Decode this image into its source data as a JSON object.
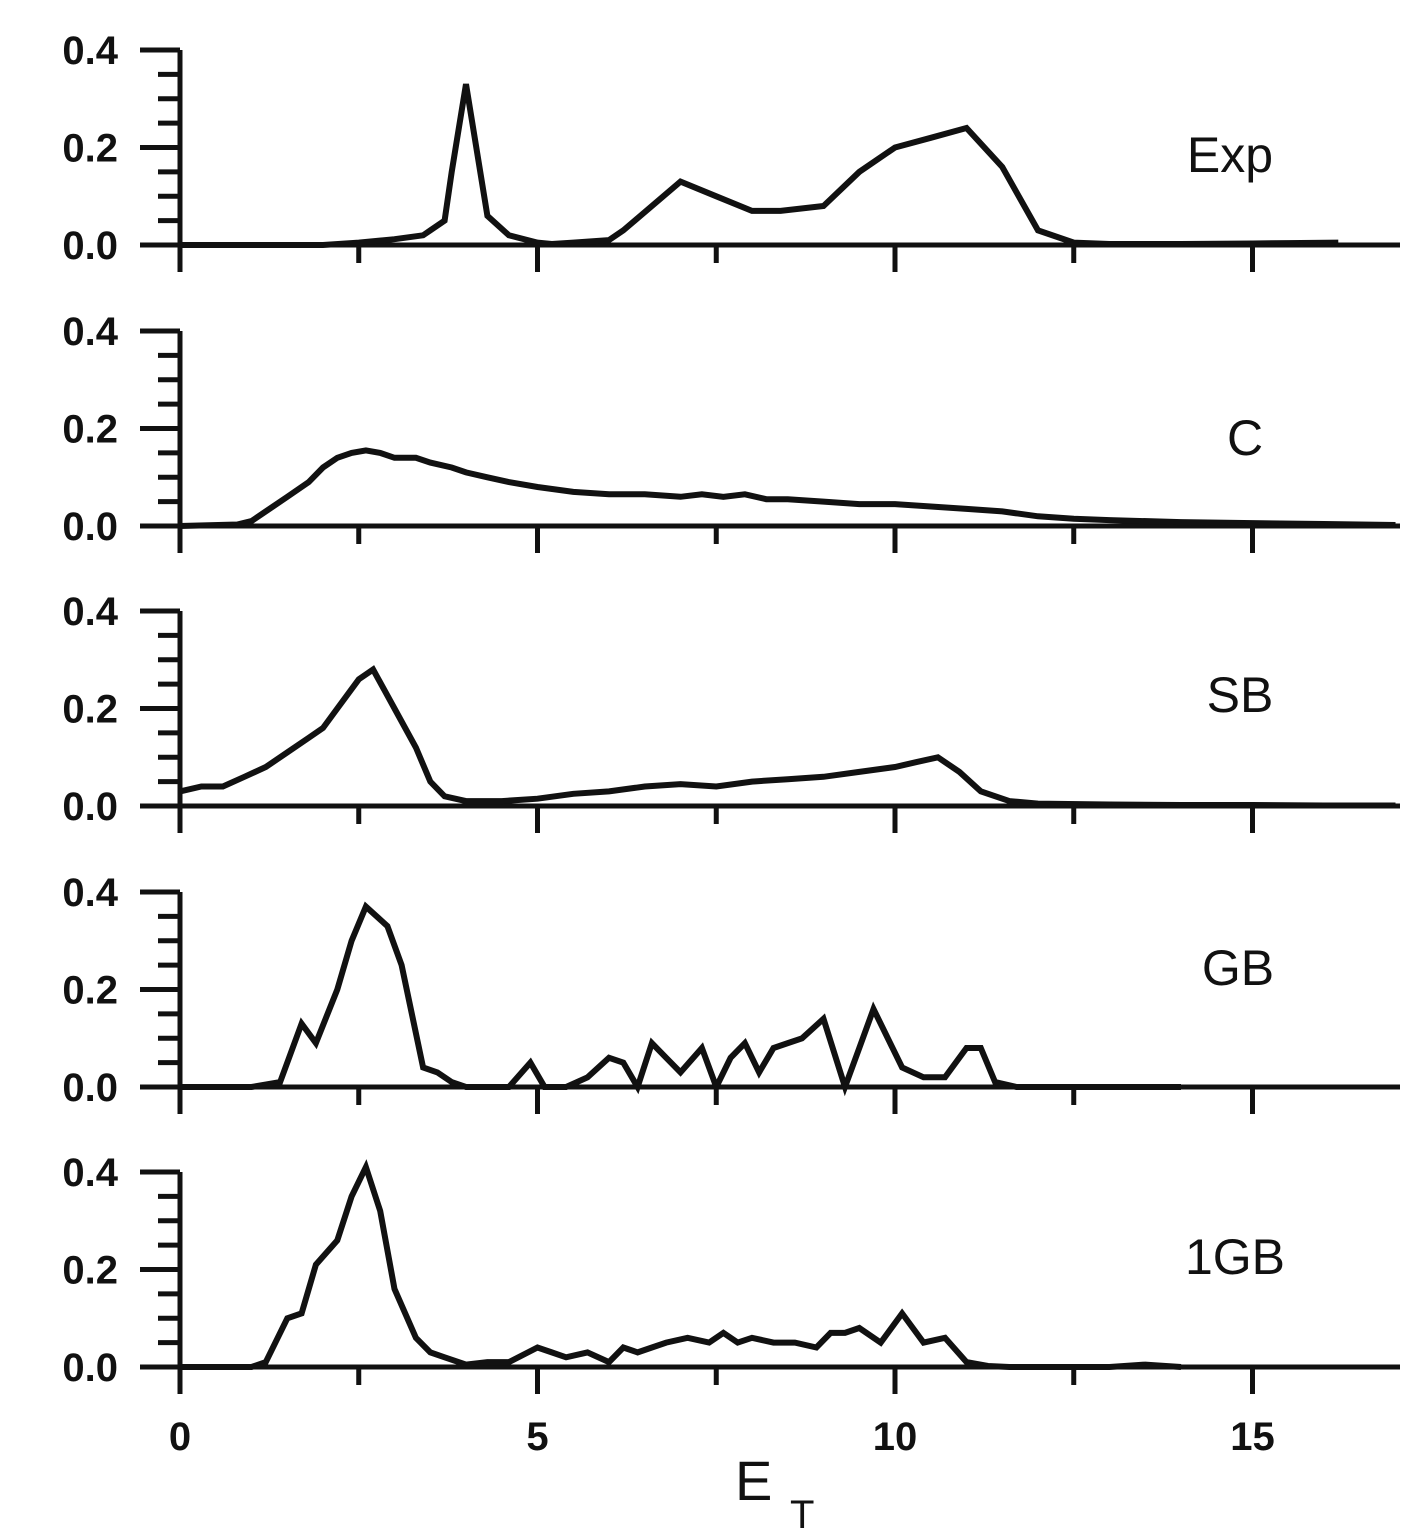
{
  "chart_data": {
    "type": "line",
    "layout": "stacked-panels",
    "xlabel": "E",
    "xlabel_subscript": "T",
    "xlim": [
      0,
      17
    ],
    "ylim": [
      0,
      0.4
    ],
    "x_ticks": [
      0,
      5,
      10,
      15
    ],
    "x_tick_labels": [
      "0",
      "5",
      "10",
      "15"
    ],
    "y_ticks": [
      0,
      0.2,
      0.4
    ],
    "y_tick_labels": [
      "0.0",
      "0.2",
      "0.4"
    ],
    "line_color": "#111111",
    "grid": false,
    "panels": [
      {
        "name": "Exp",
        "x": [
          0,
          2,
          2.5,
          3,
          3.4,
          3.5,
          3.7,
          3.8,
          4.0,
          4.3,
          4.6,
          5.0,
          5.2,
          5.5,
          6.0,
          6.2,
          7.0,
          7.5,
          8.0,
          8.4,
          9.0,
          9.5,
          10.0,
          10.5,
          11.0,
          11.5,
          12.0,
          12.5,
          13.0,
          14.0,
          15.0,
          15.5,
          16.2
        ],
        "y": [
          0,
          0,
          0.005,
          0.012,
          0.02,
          0.03,
          0.05,
          0.15,
          0.33,
          0.06,
          0.02,
          0.005,
          0.002,
          0.005,
          0.01,
          0.03,
          0.13,
          0.1,
          0.07,
          0.07,
          0.08,
          0.15,
          0.2,
          0.22,
          0.24,
          0.16,
          0.03,
          0.005,
          0.002,
          0.002,
          0.003,
          0.004,
          0.005
        ]
      },
      {
        "name": "C",
        "x": [
          0,
          0.8,
          1.0,
          1.2,
          1.5,
          1.8,
          2.0,
          2.2,
          2.4,
          2.6,
          2.8,
          3.0,
          3.3,
          3.5,
          3.8,
          4.0,
          4.3,
          4.6,
          5.0,
          5.5,
          6.0,
          6.5,
          7.0,
          7.3,
          7.6,
          7.9,
          8.2,
          8.5,
          9.0,
          9.5,
          10.0,
          10.5,
          11.0,
          11.5,
          12.0,
          12.5,
          13.0,
          14.0,
          15.0,
          16.0,
          17.0
        ],
        "y": [
          0,
          0.003,
          0.01,
          0.03,
          0.06,
          0.09,
          0.12,
          0.14,
          0.15,
          0.155,
          0.15,
          0.14,
          0.14,
          0.13,
          0.12,
          0.11,
          0.1,
          0.09,
          0.08,
          0.07,
          0.065,
          0.065,
          0.06,
          0.065,
          0.06,
          0.065,
          0.055,
          0.055,
          0.05,
          0.045,
          0.045,
          0.04,
          0.035,
          0.03,
          0.02,
          0.015,
          0.012,
          0.008,
          0.006,
          0.004,
          0.002
        ]
      },
      {
        "name": "SB",
        "x": [
          0,
          0.3,
          0.6,
          0.9,
          1.2,
          1.5,
          1.8,
          2.0,
          2.2,
          2.5,
          2.7,
          3.0,
          3.3,
          3.5,
          3.7,
          4.0,
          4.5,
          5.0,
          5.5,
          6.0,
          6.5,
          7.0,
          7.5,
          8.0,
          8.5,
          9.0,
          9.5,
          10.0,
          10.3,
          10.6,
          10.9,
          11.2,
          11.6,
          12.0,
          13.0,
          14.0,
          15.0,
          16.0,
          17.0
        ],
        "y": [
          0.03,
          0.04,
          0.04,
          0.06,
          0.08,
          0.11,
          0.14,
          0.16,
          0.2,
          0.26,
          0.28,
          0.2,
          0.12,
          0.05,
          0.02,
          0.01,
          0.01,
          0.015,
          0.025,
          0.03,
          0.04,
          0.045,
          0.04,
          0.05,
          0.055,
          0.06,
          0.07,
          0.08,
          0.09,
          0.1,
          0.07,
          0.03,
          0.01,
          0.005,
          0.003,
          0.002,
          0.002,
          0.001,
          0.001
        ]
      },
      {
        "name": "GB",
        "x": [
          0,
          0.8,
          1.0,
          1.4,
          1.7,
          1.9,
          2.2,
          2.4,
          2.6,
          2.9,
          3.1,
          3.4,
          3.6,
          3.8,
          4.0,
          4.3,
          4.6,
          4.9,
          5.1,
          5.4,
          5.7,
          6.0,
          6.2,
          6.4,
          6.6,
          6.8,
          7.0,
          7.3,
          7.5,
          7.7,
          7.9,
          8.1,
          8.3,
          8.5,
          8.7,
          9.0,
          9.3,
          9.5,
          9.7,
          10.1,
          10.4,
          10.7,
          11.0,
          11.2,
          11.4,
          11.7,
          12.0,
          13.0,
          14.0
        ],
        "y": [
          0,
          0,
          0,
          0.01,
          0.13,
          0.09,
          0.2,
          0.3,
          0.37,
          0.33,
          0.25,
          0.04,
          0.03,
          0.01,
          0,
          0,
          0,
          0.05,
          0,
          0,
          0.02,
          0.06,
          0.05,
          0,
          0.09,
          0.06,
          0.03,
          0.08,
          0,
          0.06,
          0.09,
          0.03,
          0.08,
          0.09,
          0.1,
          0.14,
          0,
          0.08,
          0.16,
          0.04,
          0.02,
          0.02,
          0.08,
          0.08,
          0.01,
          0,
          0,
          0,
          0
        ]
      },
      {
        "name": "1GB",
        "x": [
          0,
          0.8,
          1.0,
          1.2,
          1.5,
          1.7,
          1.9,
          2.2,
          2.4,
          2.6,
          2.8,
          3.0,
          3.3,
          3.5,
          3.7,
          4.0,
          4.3,
          4.6,
          5.0,
          5.2,
          5.4,
          5.7,
          6.0,
          6.2,
          6.4,
          6.6,
          6.8,
          7.1,
          7.4,
          7.6,
          7.8,
          8.0,
          8.3,
          8.6,
          8.9,
          9.1,
          9.3,
          9.5,
          9.8,
          10.1,
          10.4,
          10.7,
          11.0,
          11.3,
          11.6,
          12.0,
          13.0,
          13.5,
          14.0
        ],
        "y": [
          0,
          0,
          0,
          0.01,
          0.1,
          0.11,
          0.21,
          0.26,
          0.35,
          0.41,
          0.32,
          0.16,
          0.06,
          0.03,
          0.02,
          0.005,
          0.01,
          0.01,
          0.04,
          0.03,
          0.02,
          0.03,
          0.01,
          0.04,
          0.03,
          0.04,
          0.05,
          0.06,
          0.05,
          0.07,
          0.05,
          0.06,
          0.05,
          0.05,
          0.04,
          0.07,
          0.07,
          0.08,
          0.05,
          0.11,
          0.05,
          0.06,
          0.01,
          0.002,
          0,
          0,
          0,
          0.005,
          0
        ]
      }
    ]
  }
}
